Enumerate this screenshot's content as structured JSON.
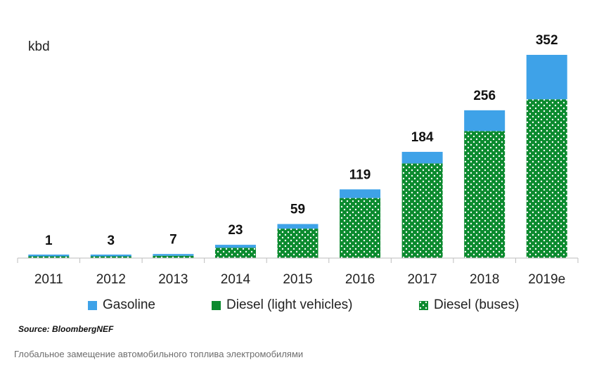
{
  "chart_data": {
    "type": "bar",
    "stacked": true,
    "unit": "kbd",
    "categories": [
      "2011",
      "2012",
      "2013",
      "2014",
      "2015",
      "2016",
      "2017",
      "2018",
      "2019e"
    ],
    "totals": [
      1,
      3,
      7,
      23,
      59,
      119,
      184,
      256,
      352
    ],
    "series": [
      {
        "name": "Diesel (buses)",
        "color": "#0b8a2e",
        "pattern": "dots",
        "values": [
          0.4,
          2,
          4,
          18,
          51,
          104,
          164,
          220,
          275
        ]
      },
      {
        "name": "Diesel (light vehicles)",
        "color": "#0b8a2e",
        "pattern": "solid",
        "values": [
          0,
          0,
          0,
          0,
          0,
          0,
          0,
          0,
          0
        ]
      },
      {
        "name": "Gasoline",
        "color": "#3ea2e8",
        "pattern": "solid",
        "values": [
          0.6,
          1,
          3,
          5,
          8,
          15,
          20,
          36,
          77
        ]
      }
    ],
    "ylim": [
      0,
      352
    ],
    "grid": false,
    "legend_position": "bottom",
    "legend_order": [
      "Gasoline",
      "Diesel (light vehicles)",
      "Diesel (buses)"
    ]
  },
  "source": "Source: BloombergNEF",
  "caption": "Глобальное замещение автомобильного топлива электромобилями"
}
